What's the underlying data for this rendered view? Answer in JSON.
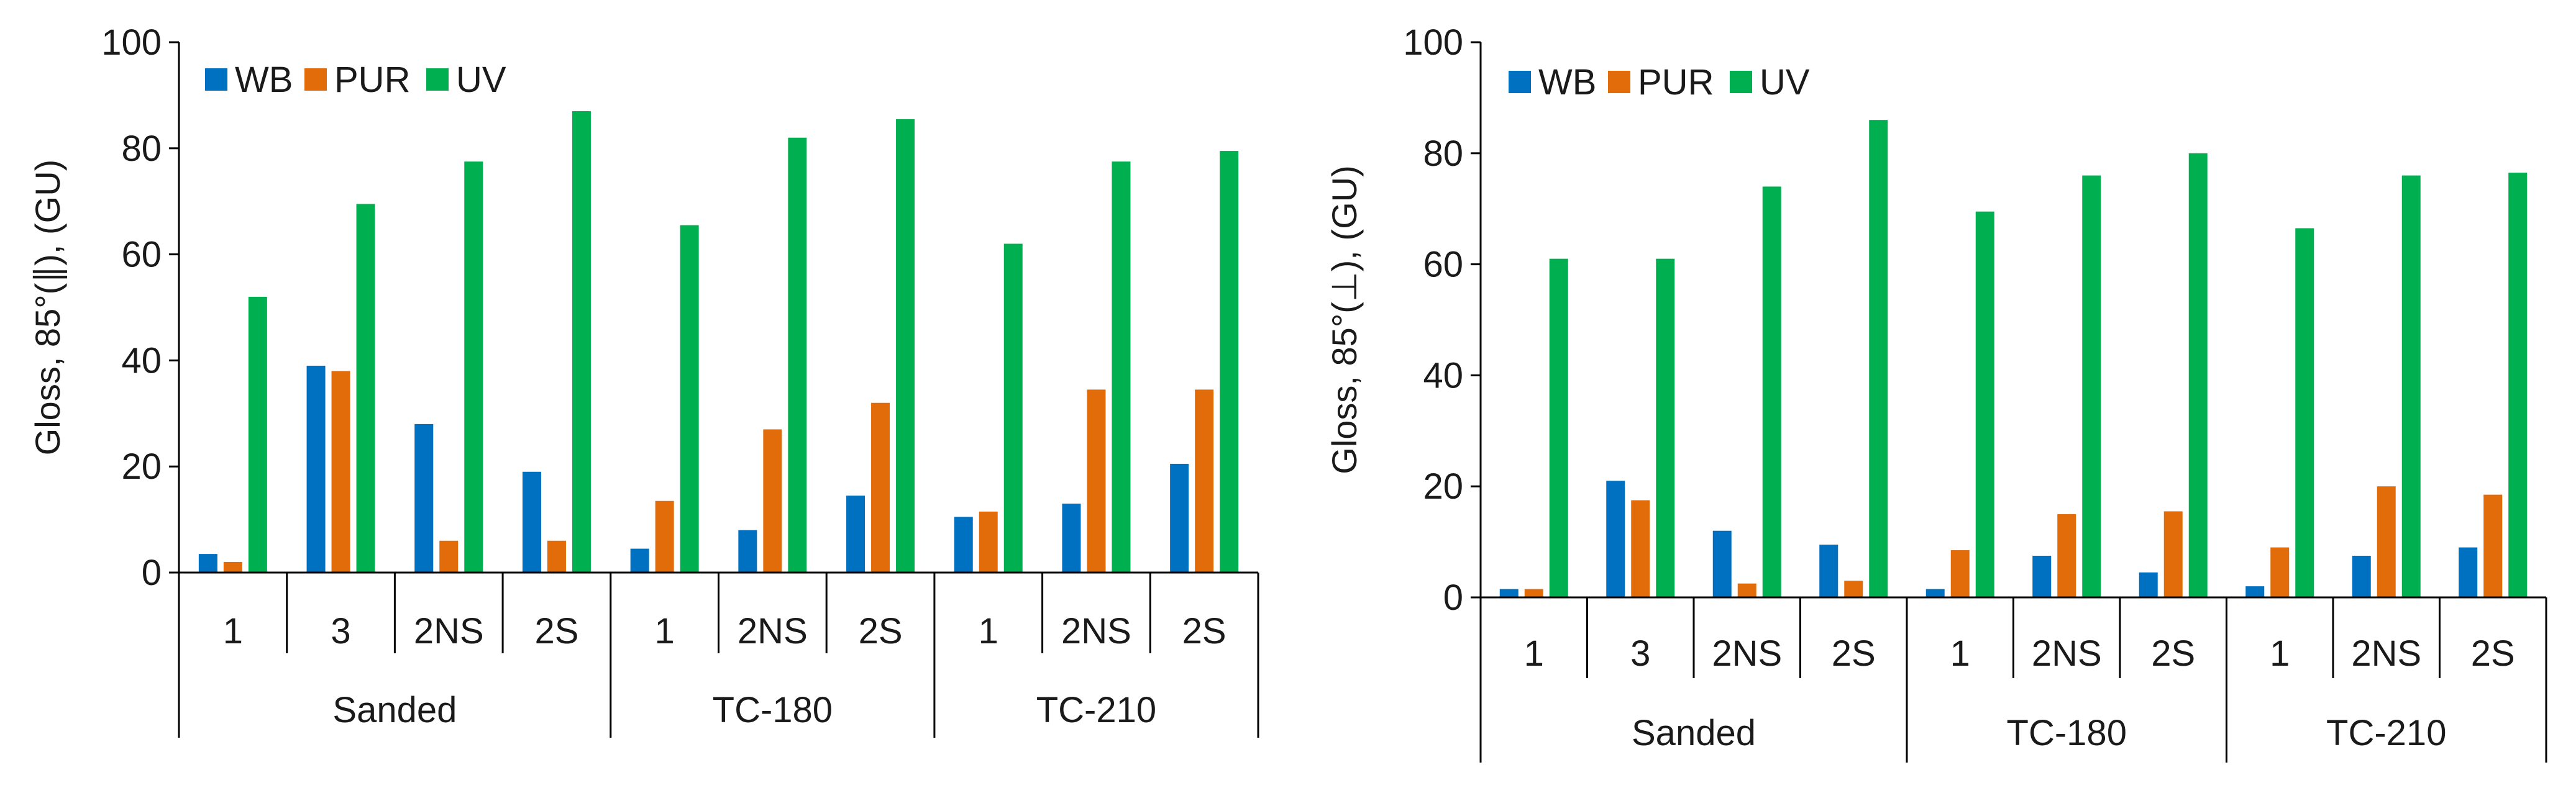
{
  "chart_data": [
    {
      "type": "bar",
      "ylabel": "Gloss, 85°(∥), (GU)",
      "ylim": [
        0,
        100
      ],
      "yticks": [
        0,
        20,
        40,
        60,
        80,
        100
      ],
      "legend_position": "top-left",
      "groups": [
        {
          "label": "Sanded",
          "categories": [
            "1",
            "3",
            "2NS",
            "2S"
          ]
        },
        {
          "label": "TC-180",
          "categories": [
            "1",
            "2NS",
            "2S"
          ]
        },
        {
          "label": "TC-210",
          "categories": [
            "1",
            "2NS",
            "2S"
          ]
        }
      ],
      "categories": [
        "1",
        "3",
        "2NS",
        "2S",
        "1",
        "2NS",
        "2S",
        "1",
        "2NS",
        "2S"
      ],
      "series": [
        {
          "name": "WB",
          "color": "#0070C0",
          "values": [
            3.5,
            39,
            28,
            19,
            4.5,
            8,
            14.5,
            10.5,
            13,
            20.5
          ]
        },
        {
          "name": "PUR",
          "color": "#E36C0A",
          "values": [
            2,
            38,
            6,
            6,
            13.5,
            27,
            32,
            11.5,
            34.5,
            34.5
          ]
        },
        {
          "name": "UV",
          "color": "#00B050",
          "values": [
            52,
            69.5,
            77.5,
            87,
            65.5,
            82,
            85.5,
            62,
            77.5,
            79.5
          ]
        }
      ]
    },
    {
      "type": "bar",
      "ylabel": "Gloss, 85°(⊥), (GU)",
      "ylim": [
        0,
        100
      ],
      "yticks": [
        0,
        20,
        40,
        60,
        80,
        100
      ],
      "legend_position": "top-left",
      "groups": [
        {
          "label": "Sanded",
          "categories": [
            "1",
            "3",
            "2NS",
            "2S"
          ]
        },
        {
          "label": "TC-180",
          "categories": [
            "1",
            "2NS",
            "2S"
          ]
        },
        {
          "label": "TC-210",
          "categories": [
            "1",
            "2NS",
            "2S"
          ]
        }
      ],
      "categories": [
        "1",
        "3",
        "2NS",
        "2S",
        "1",
        "2NS",
        "2S",
        "1",
        "2NS",
        "2S"
      ],
      "series": [
        {
          "name": "WB",
          "color": "#0070C0",
          "values": [
            1.5,
            21,
            12,
            9.5,
            1.5,
            7.5,
            4.5,
            2,
            7.5,
            9
          ]
        },
        {
          "name": "PUR",
          "color": "#E36C0A",
          "values": [
            1.5,
            17.5,
            2.5,
            3,
            8.5,
            15,
            15.5,
            9,
            20,
            18.5
          ]
        },
        {
          "name": "UV",
          "color": "#00B050",
          "values": [
            61,
            61,
            74,
            86,
            69.5,
            76,
            80,
            66.5,
            76,
            76.5
          ]
        }
      ]
    }
  ]
}
